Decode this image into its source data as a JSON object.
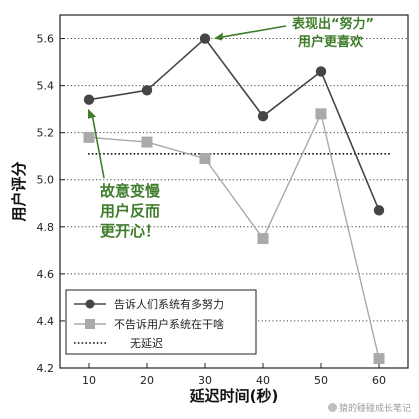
{
  "chart_data": {
    "type": "line",
    "xlabel": "延迟时间(秒)",
    "ylabel": "用户评分",
    "x": [
      10,
      20,
      30,
      40,
      50,
      60
    ],
    "xticks": [
      "10",
      "20",
      "30",
      "40",
      "50",
      "60"
    ],
    "yticks": [
      "4.2",
      "4.4",
      "4.6",
      "4.8",
      "5.0",
      "5.2",
      "5.4",
      "5.6"
    ],
    "xlim": [
      5,
      65
    ],
    "ylim": [
      4.2,
      5.7
    ],
    "grid": "horizontal dotted",
    "legend_position": "bottom-left",
    "series": [
      {
        "name": "告诉人们系统有多努力",
        "values": [
          5.34,
          5.38,
          5.6,
          5.27,
          5.46,
          4.87
        ],
        "color": "#454545",
        "marker": "circle"
      },
      {
        "name": "不告诉用户系统在干啥",
        "values": [
          5.18,
          5.16,
          5.09,
          4.75,
          5.28,
          4.24
        ],
        "color": "#aaaaaa",
        "marker": "square"
      }
    ],
    "reference_line": {
      "name": "无延迟",
      "value": 5.11,
      "style": "dotted"
    },
    "annotations": [
      {
        "lines": [
          "表现出“努力”",
          "用户更喜欢"
        ],
        "color": "#3f7d2c"
      },
      {
        "lines": [
          "故意变慢",
          "用户反而",
          "更开心！"
        ],
        "color": "#3f7d2c"
      }
    ]
  },
  "watermark": "猿的碰碰成长笔记"
}
